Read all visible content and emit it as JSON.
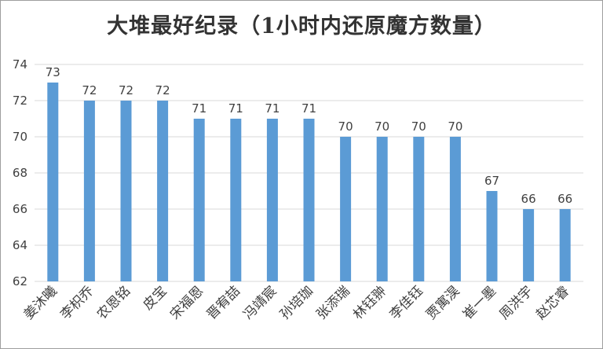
{
  "chart_data": {
    "type": "bar",
    "title": "大堆最好纪录（1小时内还原魔方数量）",
    "categories": [
      "姜沐曦",
      "李枳乔",
      "农恩铭",
      "皮宝",
      "宋福恩",
      "晋宥喆",
      "冯靖宸",
      "孙培珈",
      "张添瑞",
      "林钰翀",
      "李佳钰",
      "贾寓淏",
      "崔一墨",
      "周洪宇",
      "赵芯睿"
    ],
    "values": [
      73,
      72,
      72,
      72,
      71,
      71,
      71,
      71,
      70,
      70,
      70,
      70,
      67,
      66,
      66
    ],
    "ylim": [
      62,
      74
    ],
    "yticks": [
      62,
      64,
      66,
      68,
      70,
      72,
      74
    ],
    "xlabel": "",
    "ylabel": "",
    "grid": true,
    "legend": "none",
    "bar_color": "#5b9bd5",
    "grid_color": "#d9d9d9"
  }
}
